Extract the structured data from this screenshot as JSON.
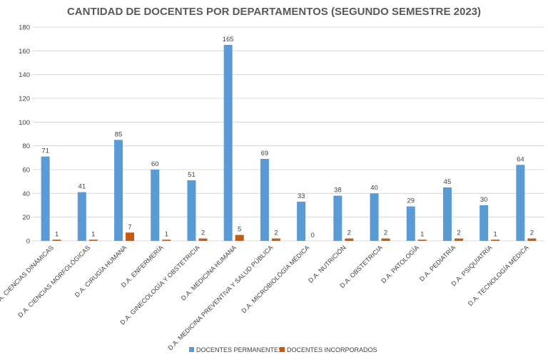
{
  "chart_data": {
    "type": "bar",
    "title": "CANTIDAD DE DOCENTES POR DEPARTAMENTOS (SEGUNDO SEMESTRE 2023)",
    "xlabel": "",
    "ylabel": "",
    "ylim": [
      0,
      180
    ],
    "yticks": [
      0,
      20,
      40,
      60,
      80,
      100,
      120,
      140,
      160,
      180
    ],
    "grid": true,
    "legend_position": "bottom",
    "categories": [
      "D.A. CIENCIAS DINÁMICAS",
      "D.A. CIENCIAS MORFOLÓGICAS",
      "D.A. CIRUGÍA HUMANA",
      "D.A. ENFERMERÍA",
      "D.A. GINECOLOGÍA Y OBSTETRICIA",
      "D.A. MEDICINA HUMANA",
      "D.A. MEDICINA PREVENTIVA Y SALUD PÚBLICA",
      "D.A. MICROBIOLÓGÍA MÉDICA",
      "D.A. NUTRICIÓN",
      "D.A. OBSTETRICIA",
      "D.A. PATOLOGÍA",
      "D.A. PEDIATRÍA",
      "D.A. PSIQUIATRÍA",
      "D.A. TECNOLOGÍA MÉDICA"
    ],
    "series": [
      {
        "name": "DOCENTES PERMANENTES",
        "color": "#5b9bd5",
        "values": [
          71,
          41,
          85,
          60,
          51,
          165,
          69,
          33,
          38,
          40,
          29,
          45,
          30,
          64
        ]
      },
      {
        "name": "DOCENTES INCORPORADOS",
        "color": "#c55a11",
        "values": [
          1,
          1,
          7,
          1,
          2,
          5,
          2,
          0,
          2,
          2,
          1,
          2,
          1,
          2
        ]
      }
    ]
  }
}
